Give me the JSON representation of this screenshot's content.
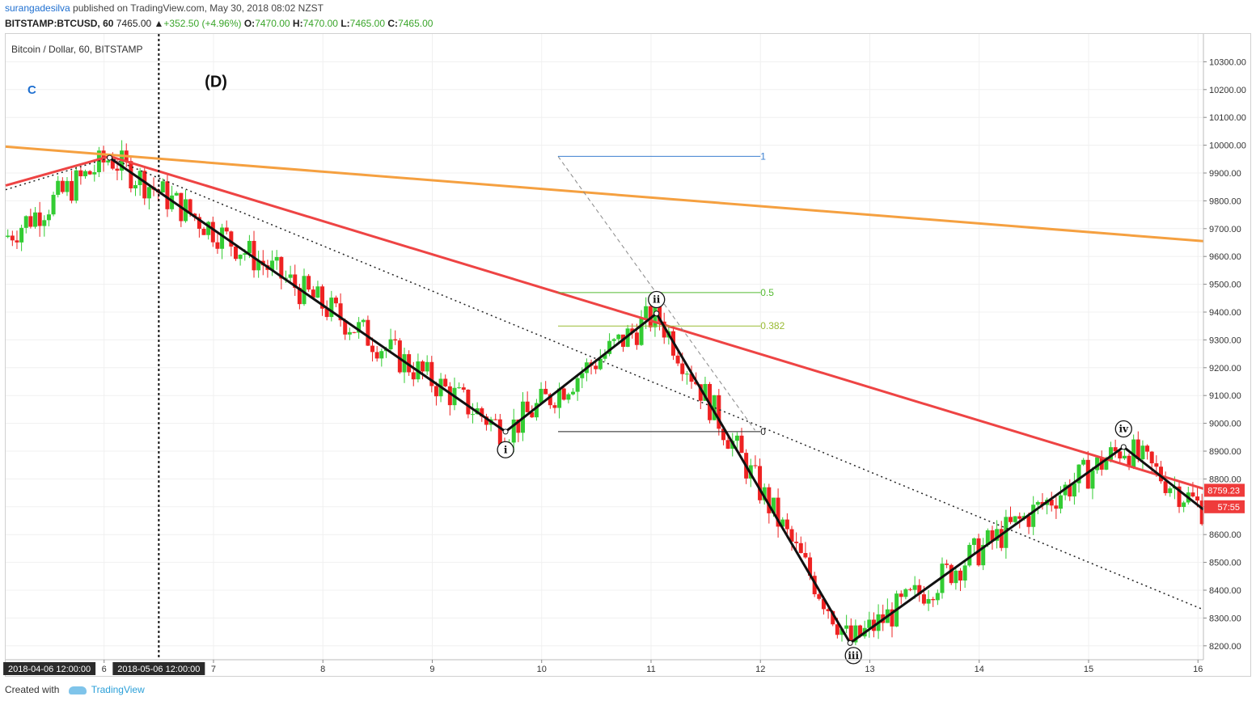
{
  "header": {
    "author": "surangadesilva",
    "published_text": " published on TradingView.com, May 30, 2018 08:02 NZST",
    "symbol_line": "BITSTAMP:BTCUSD, 60",
    "last": "7465.00",
    "change": "+352.50 (+4.96%)",
    "open": "7470.00",
    "high": "7470.00",
    "low": "7465.00",
    "close": "7465.00"
  },
  "footer": {
    "created_with": "Created with",
    "brand": "TradingView"
  },
  "chart_data": {
    "type": "candlestick",
    "title": "Bitcoin / Dollar, 60, BITSTAMP",
    "x_axis": {
      "ticks": [
        "6",
        "7",
        "8",
        "9",
        "10",
        "11",
        "12",
        "13",
        "14",
        "15",
        "16"
      ],
      "tick_positions": [
        6,
        7,
        8,
        9,
        10,
        11,
        12,
        13,
        14,
        15,
        16
      ],
      "range": [
        5.1,
        16.05
      ],
      "highlight_labels": [
        {
          "text": "2018-04-06 12:00:00",
          "at": 5.5
        },
        {
          "text": "2018-05-06 12:00:00",
          "at": 6.5
        }
      ]
    },
    "y_axis": {
      "range": [
        8150,
        10400
      ],
      "ticks": [
        8200,
        8300,
        8400,
        8500,
        8600,
        8700,
        8800,
        8900,
        9000,
        9100,
        9200,
        9300,
        9400,
        9500,
        9600,
        9700,
        9800,
        9900,
        10000,
        10100,
        10200,
        10300
      ],
      "tick_labels": [
        "8200.00",
        "8300.00",
        "8400.00",
        "8500.00",
        "8600.00",
        "8700.00",
        "8800.00",
        "8900.00",
        "9000.00",
        "9100.00",
        "9200.00",
        "9300.00",
        "9400.00",
        "9500.00",
        "9600.00",
        "9700.00",
        "9800.00",
        "9900.00",
        "10000.00",
        "10100.00",
        "10200.00",
        "10300.00"
      ]
    },
    "price_labels": [
      {
        "text": "8759.23",
        "value": 8759.23,
        "color": "#ef3b3b"
      },
      {
        "text": "57:55",
        "value": 8700,
        "color": "#ef3b3b"
      }
    ],
    "wave_path": [
      {
        "x": 6.05,
        "y": 9955
      },
      {
        "x": 9.67,
        "y": 8970
      },
      {
        "x": 11.05,
        "y": 9395
      },
      {
        "x": 12.82,
        "y": 8210
      },
      {
        "x": 15.32,
        "y": 8915
      },
      {
        "x": 16.05,
        "y": 8690
      }
    ],
    "wave_labels": [
      {
        "text": "i",
        "x": 9.67,
        "y": 8905
      },
      {
        "text": "ii",
        "x": 11.05,
        "y": 9445
      },
      {
        "text": "iii",
        "x": 12.85,
        "y": 8165
      },
      {
        "text": "iv",
        "x": 15.32,
        "y": 8980
      }
    ],
    "annotations": [
      {
        "text": "C",
        "x": 5.3,
        "y": 10185,
        "color": "#1e6fd0"
      },
      {
        "text": "(D)",
        "x": 6.92,
        "y": 10210,
        "color": "#111"
      }
    ],
    "trendlines": [
      {
        "name": "orange",
        "color": "#f5a040",
        "from": {
          "x": 5.1,
          "y": 9995
        },
        "to": {
          "x": 16.05,
          "y": 9655
        }
      },
      {
        "name": "red-upper",
        "color": "#ee4444",
        "from": {
          "x": 6.05,
          "y": 9960
        },
        "to": {
          "x": 16.05,
          "y": 8765
        }
      },
      {
        "name": "red-left",
        "color": "#ee4444",
        "from": {
          "x": 5.1,
          "y": 9855
        },
        "to": {
          "x": 6.05,
          "y": 9960
        }
      },
      {
        "name": "dotted",
        "color": "#222",
        "dotted": true,
        "from": {
          "x": 6.05,
          "y": 9955
        },
        "to": {
          "x": 16.05,
          "y": 8330
        }
      },
      {
        "name": "dotted-left",
        "color": "#222",
        "dotted": true,
        "from": {
          "x": 5.1,
          "y": 9840
        },
        "to": {
          "x": 6.05,
          "y": 9955
        }
      },
      {
        "name": "fib-diagonal",
        "color": "#888",
        "dashed": true,
        "from": {
          "x": 10.15,
          "y": 9960
        },
        "to": {
          "x": 11.95,
          "y": 8975
        }
      }
    ],
    "fibonacci": {
      "x_start": 10.15,
      "x_end": 12.0,
      "levels": [
        {
          "label": "1",
          "value": 9960,
          "color": "#3b7fd0"
        },
        {
          "label": "0.5",
          "value": 9470,
          "color": "#55bb33"
        },
        {
          "label": "0.382",
          "value": 9350,
          "color": "#99bb33"
        },
        {
          "label": "0",
          "value": 8970,
          "color": "#222"
        }
      ]
    },
    "vertical_marker": {
      "x": 6.5,
      "style": "dotted",
      "color": "#111"
    },
    "grid": true
  }
}
